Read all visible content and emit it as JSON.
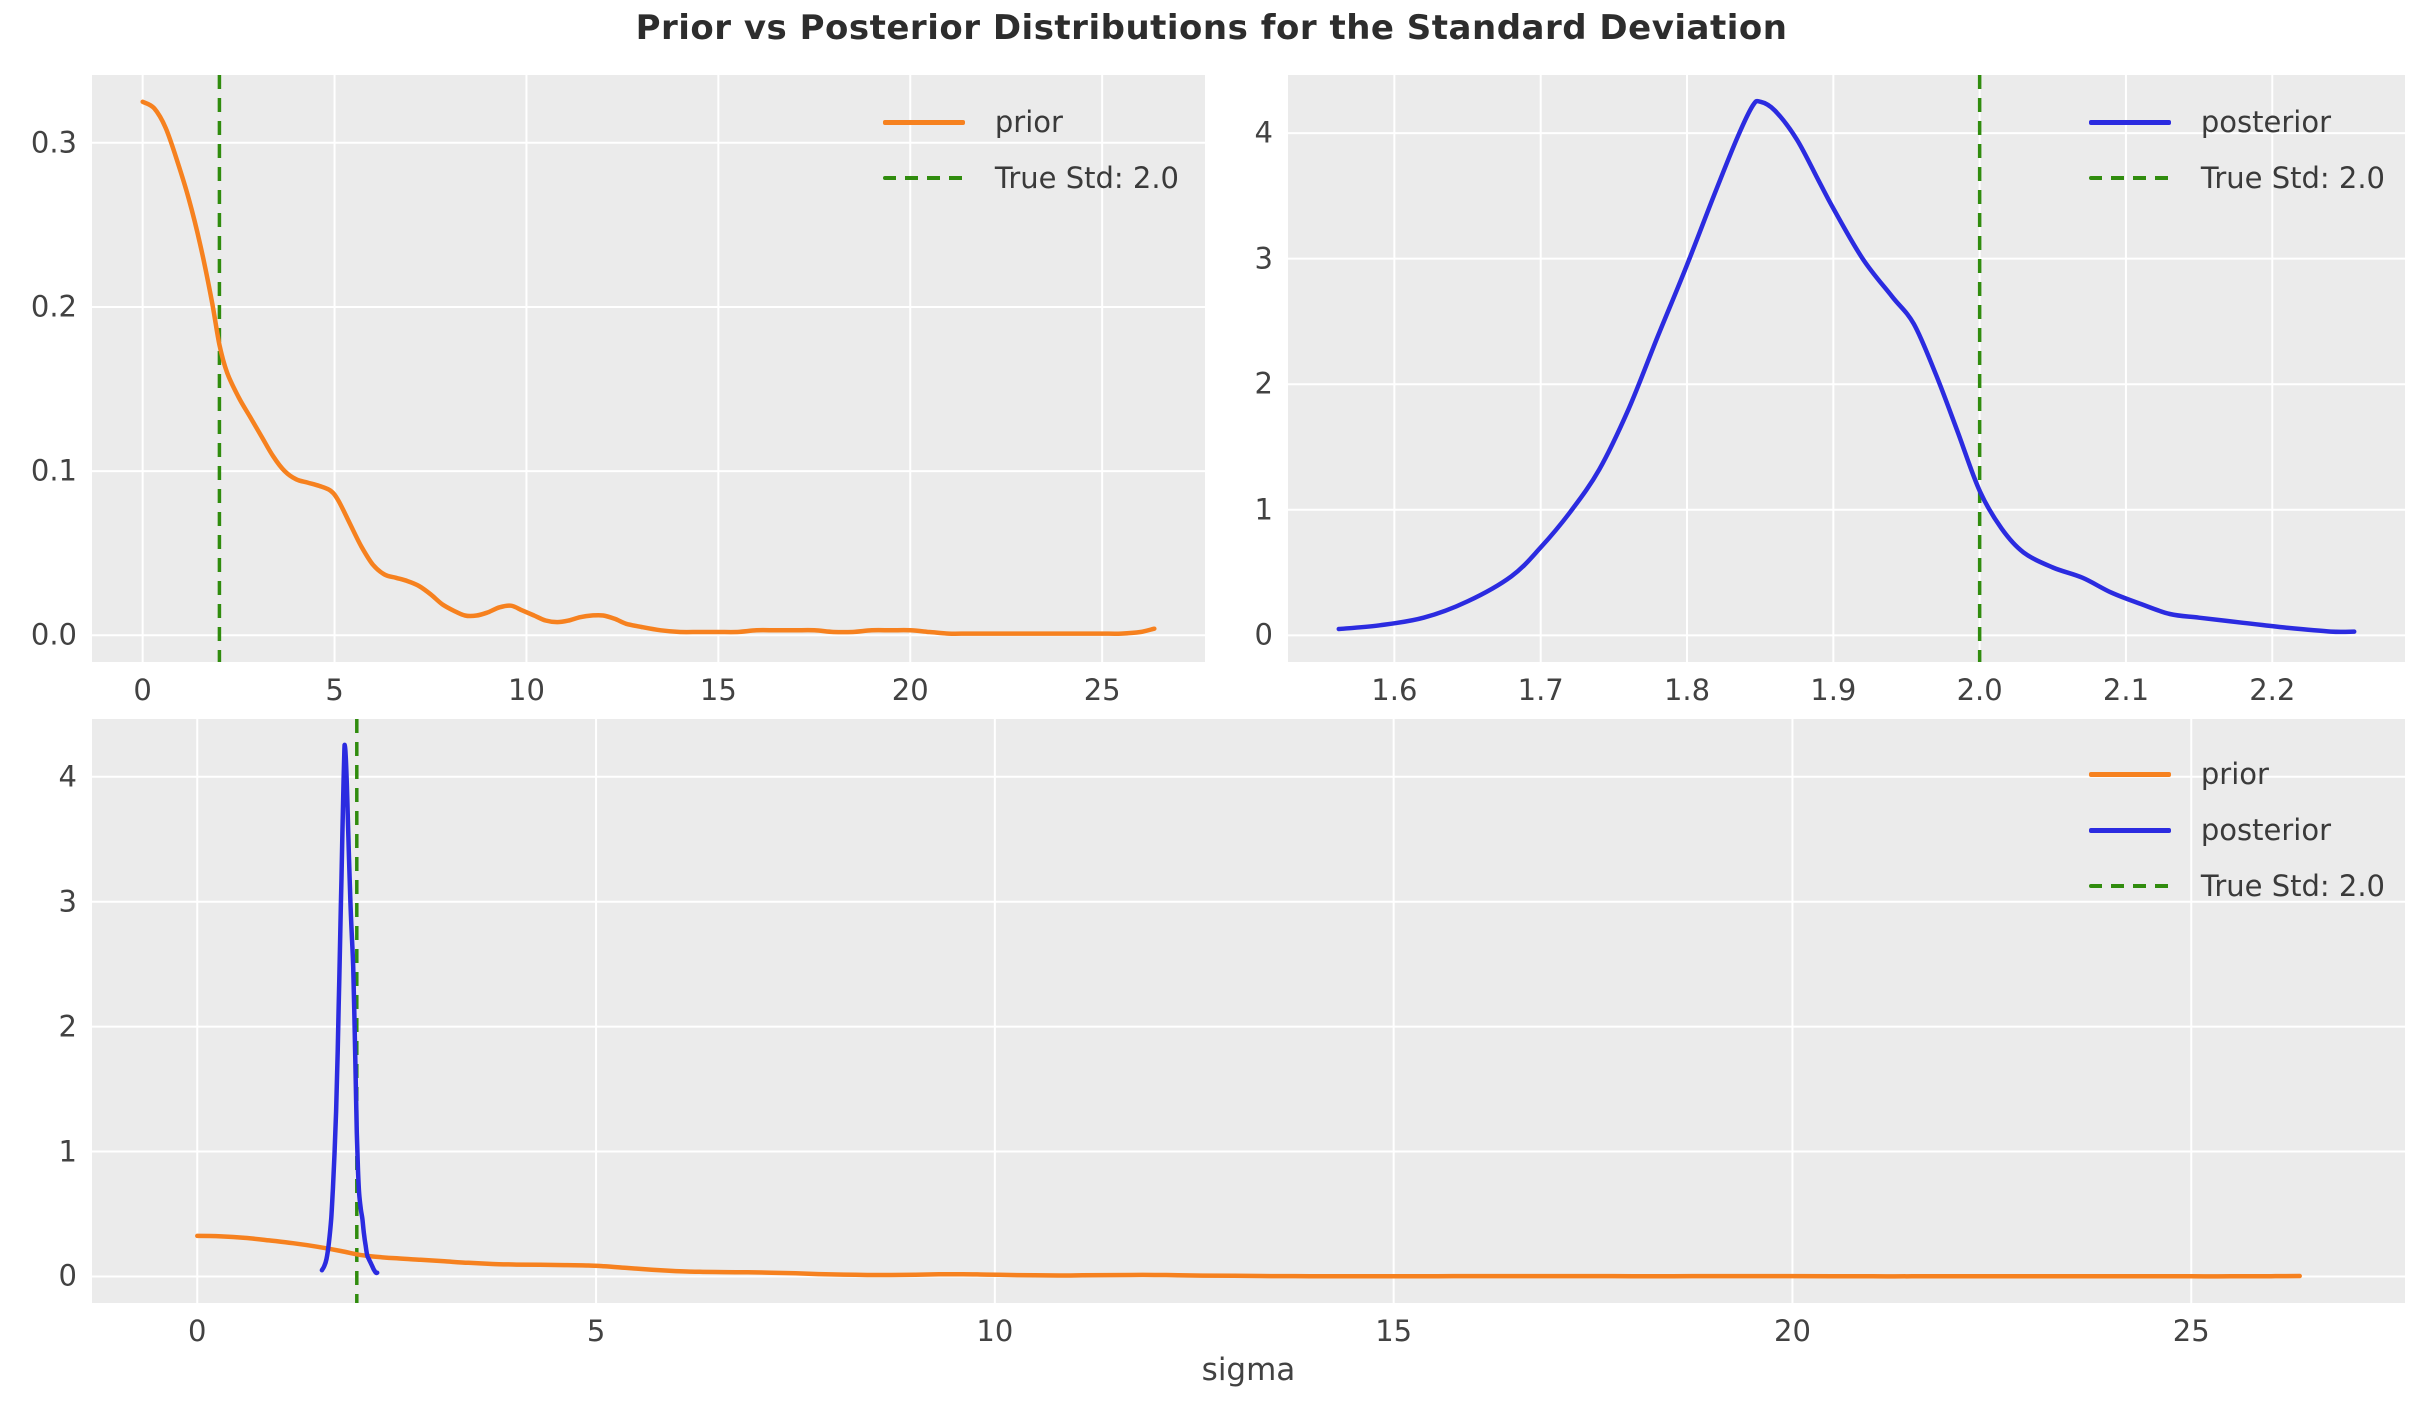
{
  "title": "Prior vs Posterior Distributions for the Standard Deviation",
  "colors": {
    "prior": "#f6811f",
    "posterior": "#2b2be0",
    "true_std": "#308c0e",
    "panel_bg": "#ebebeb",
    "grid": "#ffffff",
    "tick_text": "#424242",
    "title_text": "#2d2d2d"
  },
  "chart_data": [
    {
      "name": "prior-distribution",
      "type": "line",
      "title": "",
      "xlabel": "",
      "ylabel": "",
      "grid": true,
      "legend_position": "upper right",
      "xlim": [
        -1.32,
        27.68
      ],
      "ylim": [
        -0.0163,
        0.3413
      ],
      "xticks": {
        "values": [
          0,
          5,
          10,
          15,
          20,
          25
        ],
        "labels": [
          "0",
          "5",
          "10",
          "15",
          "20",
          "25"
        ]
      },
      "yticks": {
        "values": [
          0.0,
          0.1,
          0.2,
          0.3
        ],
        "labels": [
          "0.0",
          "0.1",
          "0.2",
          "0.3"
        ]
      },
      "vline": {
        "x": 2.0,
        "color_key": "true_std",
        "style": "dashed",
        "label": "True Std: 2.0"
      },
      "series": [
        {
          "name": "prior",
          "color_key": "prior",
          "points": [
            [
              0,
              0.325
            ],
            [
              0.3,
              0.321
            ],
            [
              0.6,
              0.309
            ],
            [
              0.9,
              0.289
            ],
            [
              1.2,
              0.266
            ],
            [
              1.5,
              0.238
            ],
            [
              1.8,
              0.204
            ],
            [
              2.0,
              0.177
            ],
            [
              2.2,
              0.16
            ],
            [
              2.5,
              0.145
            ],
            [
              2.8,
              0.133
            ],
            [
              3.1,
              0.121
            ],
            [
              3.4,
              0.109
            ],
            [
              3.7,
              0.1
            ],
            [
              4.0,
              0.095
            ],
            [
              4.3,
              0.093
            ],
            [
              4.6,
              0.091
            ],
            [
              4.9,
              0.088
            ],
            [
              5.1,
              0.082
            ],
            [
              5.4,
              0.068
            ],
            [
              5.7,
              0.054
            ],
            [
              6.0,
              0.043
            ],
            [
              6.3,
              0.037
            ],
            [
              6.6,
              0.035
            ],
            [
              6.9,
              0.033
            ],
            [
              7.2,
              0.03
            ],
            [
              7.5,
              0.025
            ],
            [
              7.8,
              0.019
            ],
            [
              8.1,
              0.015
            ],
            [
              8.4,
              0.012
            ],
            [
              8.7,
              0.012
            ],
            [
              9.0,
              0.014
            ],
            [
              9.3,
              0.017
            ],
            [
              9.6,
              0.018
            ],
            [
              9.9,
              0.015
            ],
            [
              10.2,
              0.012
            ],
            [
              10.5,
              0.009
            ],
            [
              10.8,
              0.008
            ],
            [
              11.1,
              0.009
            ],
            [
              11.4,
              0.011
            ],
            [
              11.7,
              0.012
            ],
            [
              12.0,
              0.012
            ],
            [
              12.3,
              0.01
            ],
            [
              12.6,
              0.007
            ],
            [
              13.0,
              0.005
            ],
            [
              13.5,
              0.003
            ],
            [
              14.0,
              0.002
            ],
            [
              14.5,
              0.002
            ],
            [
              15.0,
              0.002
            ],
            [
              15.5,
              0.002
            ],
            [
              16.0,
              0.003
            ],
            [
              16.5,
              0.003
            ],
            [
              17.0,
              0.003
            ],
            [
              17.5,
              0.003
            ],
            [
              18.0,
              0.002
            ],
            [
              18.5,
              0.002
            ],
            [
              19.0,
              0.003
            ],
            [
              19.5,
              0.003
            ],
            [
              20.0,
              0.003
            ],
            [
              20.5,
              0.002
            ],
            [
              21.0,
              0.001
            ],
            [
              21.5,
              0.001
            ],
            [
              22.0,
              0.001
            ],
            [
              22.5,
              0.001
            ],
            [
              23.0,
              0.001
            ],
            [
              23.5,
              0.001
            ],
            [
              24.0,
              0.001
            ],
            [
              24.5,
              0.001
            ],
            [
              25.0,
              0.001
            ],
            [
              25.5,
              0.001
            ],
            [
              26.0,
              0.002
            ],
            [
              26.36,
              0.004
            ]
          ]
        }
      ],
      "legend": [
        {
          "label": "prior",
          "color_key": "prior",
          "dashed": false
        },
        {
          "label": "True Std: 2.0",
          "color_key": "true_std",
          "dashed": true
        }
      ]
    },
    {
      "name": "posterior-distribution",
      "type": "line",
      "title": "",
      "xlabel": "",
      "ylabel": "",
      "grid": true,
      "legend_position": "upper right",
      "xlim": [
        1.5273,
        2.2907
      ],
      "ylim": [
        -0.2125,
        4.4625
      ],
      "xticks": {
        "values": [
          1.6,
          1.7,
          1.8,
          1.9,
          2.0,
          2.1,
          2.2
        ],
        "labels": [
          "1.6",
          "1.7",
          "1.8",
          "1.9",
          "2.0",
          "2.1",
          "2.2"
        ]
      },
      "yticks": {
        "values": [
          0,
          1,
          2,
          3,
          4
        ],
        "labels": [
          "0",
          "1",
          "2",
          "3",
          "4"
        ]
      },
      "vline": {
        "x": 2.0,
        "color_key": "true_std",
        "style": "dashed",
        "label": "True Std: 2.0"
      },
      "series": [
        {
          "name": "posterior",
          "color_key": "posterior",
          "points": [
            [
              1.562,
              0.05
            ],
            [
              1.59,
              0.08
            ],
            [
              1.62,
              0.14
            ],
            [
              1.65,
              0.27
            ],
            [
              1.68,
              0.47
            ],
            [
              1.7,
              0.7
            ],
            [
              1.72,
              0.98
            ],
            [
              1.74,
              1.32
            ],
            [
              1.76,
              1.8
            ],
            [
              1.78,
              2.38
            ],
            [
              1.8,
              2.95
            ],
            [
              1.82,
              3.55
            ],
            [
              1.835,
              3.98
            ],
            [
              1.845,
              4.22
            ],
            [
              1.85,
              4.25
            ],
            [
              1.86,
              4.18
            ],
            [
              1.875,
              3.95
            ],
            [
              1.89,
              3.62
            ],
            [
              1.9,
              3.4
            ],
            [
              1.92,
              3.0
            ],
            [
              1.94,
              2.7
            ],
            [
              1.955,
              2.48
            ],
            [
              1.97,
              2.08
            ],
            [
              1.985,
              1.62
            ],
            [
              2.0,
              1.15
            ],
            [
              2.015,
              0.85
            ],
            [
              2.03,
              0.66
            ],
            [
              2.05,
              0.54
            ],
            [
              2.07,
              0.46
            ],
            [
              2.09,
              0.34
            ],
            [
              2.11,
              0.25
            ],
            [
              2.13,
              0.17
            ],
            [
              2.15,
              0.14
            ],
            [
              2.18,
              0.1
            ],
            [
              2.21,
              0.06
            ],
            [
              2.24,
              0.03
            ],
            [
              2.256,
              0.03
            ]
          ]
        }
      ],
      "legend": [
        {
          "label": "posterior",
          "color_key": "posterior",
          "dashed": false
        },
        {
          "label": "True Std: 2.0",
          "color_key": "true_std",
          "dashed": true
        }
      ]
    },
    {
      "name": "prior-vs-posterior-combined",
      "type": "line",
      "title": "",
      "xlabel": "sigma",
      "ylabel": "",
      "grid": true,
      "legend_position": "upper right",
      "xlim": [
        -1.32,
        27.68
      ],
      "ylim": [
        -0.2125,
        4.4625
      ],
      "xticks": {
        "values": [
          0,
          5,
          10,
          15,
          20,
          25
        ],
        "labels": [
          "0",
          "5",
          "10",
          "15",
          "20",
          "25"
        ]
      },
      "yticks": {
        "values": [
          0,
          1,
          2,
          3,
          4
        ],
        "labels": [
          "0",
          "1",
          "2",
          "3",
          "4"
        ]
      },
      "vline": {
        "x": 2.0,
        "color_key": "true_std",
        "style": "dashed",
        "label": "True Std: 2.0"
      },
      "series": [
        {
          "name": "prior",
          "color_key": "prior",
          "points": [
            [
              0,
              0.325
            ],
            [
              0.3,
              0.321
            ],
            [
              0.6,
              0.309
            ],
            [
              0.9,
              0.289
            ],
            [
              1.2,
              0.266
            ],
            [
              1.5,
              0.238
            ],
            [
              1.8,
              0.204
            ],
            [
              2.0,
              0.177
            ],
            [
              2.2,
              0.16
            ],
            [
              2.5,
              0.145
            ],
            [
              2.8,
              0.133
            ],
            [
              3.1,
              0.121
            ],
            [
              3.4,
              0.109
            ],
            [
              3.7,
              0.1
            ],
            [
              4.0,
              0.095
            ],
            [
              4.3,
              0.093
            ],
            [
              4.6,
              0.091
            ],
            [
              4.9,
              0.088
            ],
            [
              5.1,
              0.082
            ],
            [
              5.4,
              0.068
            ],
            [
              5.7,
              0.054
            ],
            [
              6.0,
              0.043
            ],
            [
              6.3,
              0.037
            ],
            [
              6.6,
              0.035
            ],
            [
              6.9,
              0.033
            ],
            [
              7.2,
              0.03
            ],
            [
              7.5,
              0.025
            ],
            [
              7.8,
              0.019
            ],
            [
              8.1,
              0.015
            ],
            [
              8.4,
              0.012
            ],
            [
              8.7,
              0.012
            ],
            [
              9.0,
              0.014
            ],
            [
              9.3,
              0.017
            ],
            [
              9.6,
              0.018
            ],
            [
              9.9,
              0.015
            ],
            [
              10.2,
              0.012
            ],
            [
              10.5,
              0.009
            ],
            [
              10.8,
              0.008
            ],
            [
              11.1,
              0.009
            ],
            [
              11.4,
              0.011
            ],
            [
              11.7,
              0.012
            ],
            [
              12.0,
              0.012
            ],
            [
              12.3,
              0.01
            ],
            [
              12.6,
              0.007
            ],
            [
              13.0,
              0.005
            ],
            [
              13.5,
              0.003
            ],
            [
              14.0,
              0.002
            ],
            [
              14.5,
              0.002
            ],
            [
              15.0,
              0.002
            ],
            [
              15.5,
              0.002
            ],
            [
              16.0,
              0.003
            ],
            [
              16.5,
              0.003
            ],
            [
              17.0,
              0.003
            ],
            [
              17.5,
              0.003
            ],
            [
              18.0,
              0.002
            ],
            [
              18.5,
              0.002
            ],
            [
              19.0,
              0.003
            ],
            [
              19.5,
              0.003
            ],
            [
              20.0,
              0.003
            ],
            [
              20.5,
              0.002
            ],
            [
              21.0,
              0.001
            ],
            [
              21.5,
              0.001
            ],
            [
              22.0,
              0.001
            ],
            [
              22.5,
              0.001
            ],
            [
              23.0,
              0.001
            ],
            [
              23.5,
              0.001
            ],
            [
              24.0,
              0.001
            ],
            [
              24.5,
              0.001
            ],
            [
              25.0,
              0.001
            ],
            [
              25.5,
              0.001
            ],
            [
              26.0,
              0.002
            ],
            [
              26.36,
              0.004
            ]
          ]
        },
        {
          "name": "posterior",
          "color_key": "posterior",
          "points": [
            [
              1.562,
              0.05
            ],
            [
              1.59,
              0.08
            ],
            [
              1.62,
              0.14
            ],
            [
              1.65,
              0.27
            ],
            [
              1.68,
              0.47
            ],
            [
              1.7,
              0.7
            ],
            [
              1.72,
              0.98
            ],
            [
              1.74,
              1.32
            ],
            [
              1.76,
              1.8
            ],
            [
              1.78,
              2.38
            ],
            [
              1.8,
              2.95
            ],
            [
              1.82,
              3.55
            ],
            [
              1.835,
              3.98
            ],
            [
              1.845,
              4.22
            ],
            [
              1.85,
              4.25
            ],
            [
              1.86,
              4.18
            ],
            [
              1.875,
              3.95
            ],
            [
              1.89,
              3.62
            ],
            [
              1.9,
              3.4
            ],
            [
              1.92,
              3.0
            ],
            [
              1.94,
              2.7
            ],
            [
              1.955,
              2.48
            ],
            [
              1.97,
              2.08
            ],
            [
              1.985,
              1.62
            ],
            [
              2.0,
              1.15
            ],
            [
              2.015,
              0.85
            ],
            [
              2.03,
              0.66
            ],
            [
              2.05,
              0.54
            ],
            [
              2.07,
              0.46
            ],
            [
              2.09,
              0.34
            ],
            [
              2.11,
              0.25
            ],
            [
              2.13,
              0.17
            ],
            [
              2.15,
              0.14
            ],
            [
              2.18,
              0.1
            ],
            [
              2.21,
              0.06
            ],
            [
              2.24,
              0.03
            ],
            [
              2.256,
              0.03
            ]
          ]
        }
      ],
      "legend": [
        {
          "label": "prior",
          "color_key": "prior",
          "dashed": false
        },
        {
          "label": "posterior",
          "color_key": "posterior",
          "dashed": false
        },
        {
          "label": "True Std: 2.0",
          "color_key": "true_std",
          "dashed": true
        }
      ]
    }
  ]
}
